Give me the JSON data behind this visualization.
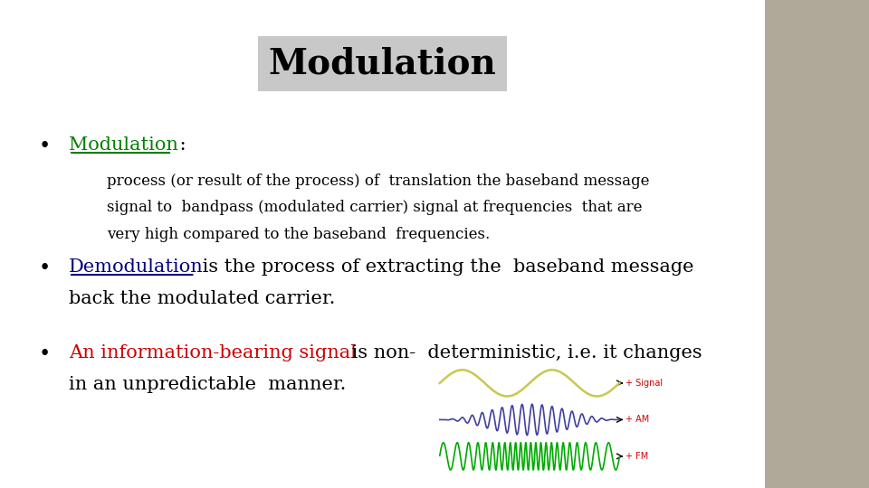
{
  "title": "Modulation",
  "title_bg_color": "#c8c8c8",
  "title_font_size": 28,
  "background_color": "#ffffff",
  "right_panel_color": "#b0a898",
  "bullet_color": "#000000",
  "bullet1_label": "Modulation",
  "bullet1_label_color": "#008000",
  "bullet1_colon": " :",
  "bullet1_text1": "process (or result of the process) of  translation the baseband message",
  "bullet1_text2": "signal to  bandpass (modulated carrier) signal at frequencies  that are",
  "bullet1_text3": "very high compared to the baseband  frequencies.",
  "bullet2_label": "Demodulation",
  "bullet2_label_color": "#000080",
  "bullet2_text1": " is the process of extracting the  baseband message",
  "bullet2_text2": "back the modulated carrier.",
  "bullet3_label": "An information-bearing signal",
  "bullet3_label_color": "#cc0000",
  "bullet3_text1": " is non-  deterministic, i.e. it changes",
  "bullet3_text2": "in an unpredictable  manner.",
  "signal_color": "#c8c850",
  "am_color": "#4040a0",
  "fm_color": "#00aa00",
  "arrow_color": "#000000",
  "label_signal": "+ Signal",
  "label_am": "+ AM",
  "label_fm": "+ FM",
  "label_red": "#cc0000"
}
